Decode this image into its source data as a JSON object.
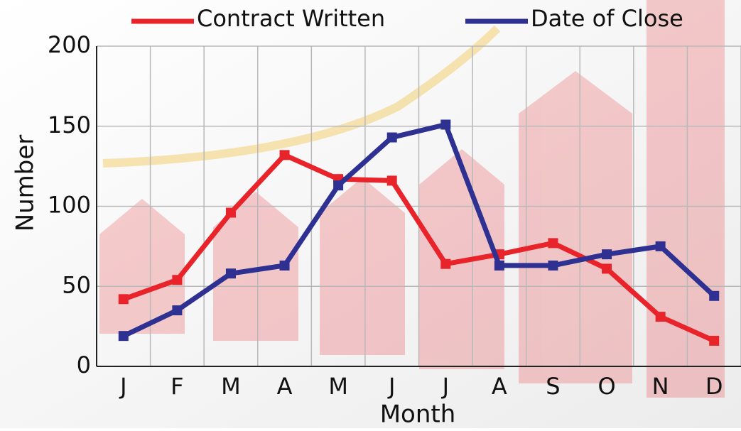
{
  "chart_data": {
    "type": "line",
    "categories": [
      "J",
      "F",
      "M",
      "A",
      "M",
      "J",
      "J",
      "A",
      "S",
      "O",
      "N",
      "D"
    ],
    "series": [
      {
        "name": "Contract Written",
        "color": "#e8232a",
        "values": [
          42,
          54,
          96,
          132,
          117,
          116,
          64,
          70,
          77,
          61,
          31,
          16
        ]
      },
      {
        "name": "Date of Close",
        "color": "#2e3192",
        "values": [
          19,
          35,
          58,
          63,
          113,
          143,
          151,
          63,
          63,
          70,
          75,
          44
        ]
      }
    ],
    "x_label": "Month",
    "y_label": "Number",
    "ylim": [
      0,
      200
    ],
    "yticks": [
      0,
      50,
      100,
      150,
      200
    ],
    "grid": true
  }
}
